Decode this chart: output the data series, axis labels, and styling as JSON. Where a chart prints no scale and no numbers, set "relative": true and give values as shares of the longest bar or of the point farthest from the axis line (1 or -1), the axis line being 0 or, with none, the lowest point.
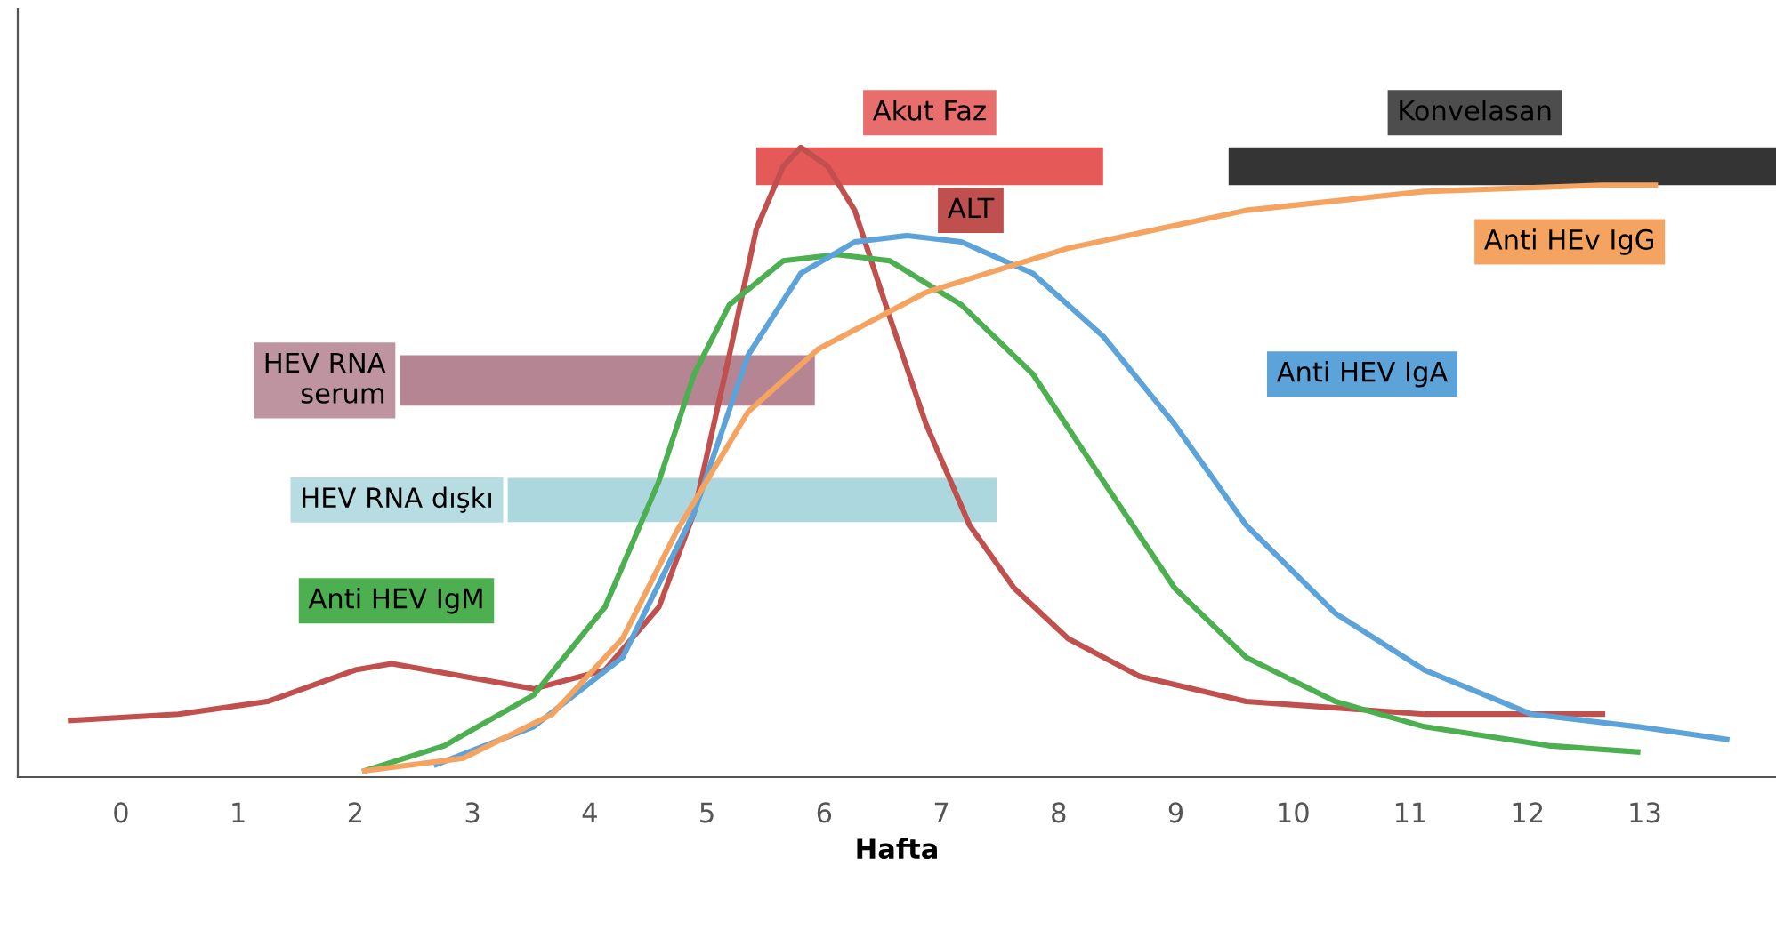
{
  "chart_data": {
    "type": "line",
    "relative": true,
    "xlabel": "Hafta",
    "xlim": [
      -0.88,
      14.12
    ],
    "xticks": [
      0,
      1,
      2,
      3,
      4,
      5,
      6,
      7,
      8,
      9,
      10,
      11,
      12,
      13
    ],
    "grid": false,
    "legend": false,
    "marker": "none",
    "line_style": "solid",
    "series": [
      {
        "name": "ALT",
        "color": "#c0504d",
        "x": [
          -0.43,
          0.49,
          1.25,
          2.0,
          2.31,
          2.92,
          3.52,
          4.13,
          4.59,
          4.89,
          5.19,
          5.42,
          5.65,
          5.8,
          6.03,
          6.26,
          6.56,
          6.87,
          7.24,
          7.62,
          8.08,
          8.69,
          9.6,
          11.12,
          12.64
        ],
        "values": [
          0.09,
          0.1,
          0.12,
          0.17,
          0.18,
          0.16,
          0.14,
          0.17,
          0.27,
          0.42,
          0.67,
          0.87,
          0.97,
          1.0,
          0.97,
          0.9,
          0.73,
          0.56,
          0.4,
          0.3,
          0.22,
          0.16,
          0.12,
          0.1,
          0.1
        ]
      },
      {
        "name": "Anti HEV IgM",
        "color": "#4caf50",
        "x": [
          2.08,
          2.76,
          3.52,
          4.13,
          4.59,
          4.89,
          5.19,
          5.65,
          6.11,
          6.56,
          7.17,
          7.78,
          8.38,
          8.99,
          9.6,
          10.36,
          11.12,
          12.18,
          12.94
        ],
        "values": [
          0.01,
          0.05,
          0.13,
          0.27,
          0.47,
          0.64,
          0.75,
          0.82,
          0.83,
          0.82,
          0.75,
          0.64,
          0.47,
          0.3,
          0.19,
          0.12,
          0.08,
          0.05,
          0.04
        ]
      },
      {
        "name": "Anti HEV IgA",
        "color": "#5ba3d9",
        "x": [
          2.69,
          3.52,
          4.28,
          4.89,
          5.35,
          5.8,
          6.26,
          6.71,
          7.17,
          7.78,
          8.38,
          8.99,
          9.6,
          10.36,
          11.12,
          12.03,
          12.94,
          13.7
        ],
        "values": [
          0.02,
          0.08,
          0.19,
          0.42,
          0.67,
          0.8,
          0.85,
          0.86,
          0.85,
          0.8,
          0.7,
          0.56,
          0.4,
          0.26,
          0.17,
          0.1,
          0.08,
          0.06
        ]
      },
      {
        "name": "Anti HEv IgG",
        "color": "#f4a460",
        "x": [
          2.08,
          2.92,
          3.68,
          4.28,
          4.74,
          5.35,
          5.95,
          6.87,
          8.08,
          9.6,
          11.12,
          12.64,
          13.09
        ],
        "values": [
          0.01,
          0.03,
          0.1,
          0.22,
          0.39,
          0.58,
          0.68,
          0.77,
          0.84,
          0.9,
          0.93,
          0.94,
          0.94
        ]
      }
    ],
    "bands": [
      {
        "axis": "x",
        "from": 5.42,
        "to": 8.38,
        "label": "Akut Faz",
        "color": "#e03c3c"
      },
      {
        "axis": "x",
        "from": 9.45,
        "to": 14.12,
        "label": "Konvelasan",
        "color": "#111111"
      },
      {
        "axis": "x",
        "from": 2.38,
        "to": 5.92,
        "label": "HEV RNA\nserum",
        "color": "#a87080"
      },
      {
        "axis": "x",
        "from": 3.3,
        "to": 7.47,
        "label": "HEV RNA dışkı",
        "color": "#9fd0d8"
      }
    ]
  }
}
